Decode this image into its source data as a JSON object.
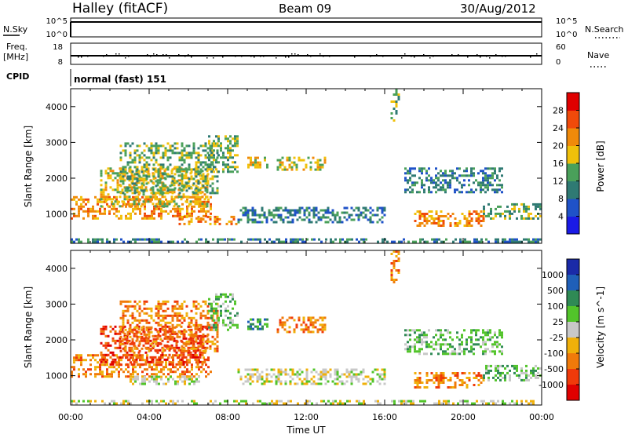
{
  "header": {
    "station": "Halley (fitACF)",
    "beam": "Beam 09",
    "date": "30/Aug/2012"
  },
  "meta_panels": {
    "nsky": {
      "left_label": "N.Sky",
      "right_label": "N.Search",
      "left_ticks": [
        "10^5",
        "10^0"
      ],
      "right_ticks": [
        "10^5",
        "10^0"
      ]
    },
    "freq": {
      "left_label_1": "Freq.",
      "left_label_2": "[MHz]",
      "right_label": "Nave",
      "left_ticks": [
        "18",
        "8"
      ],
      "right_ticks": [
        "60",
        "0"
      ]
    },
    "cpid": {
      "label": "CPID",
      "value": "normal (fast) 151"
    }
  },
  "colors": {
    "power": [
      "#1a1ae6",
      "#1f52c8",
      "#2f7a73",
      "#4aa05a",
      "#f0c00a",
      "#f08a0a",
      "#f04a0a",
      "#e00000"
    ],
    "velocity": [
      "#1a2aa8",
      "#1f5fb8",
      "#2f8a55",
      "#52c42a",
      "#c8c8c8",
      "#f0b00a",
      "#f07a0a",
      "#f03a0a",
      "#e00000"
    ],
    "black": "#000000"
  },
  "chart_data": [
    {
      "type": "heatmap",
      "title": "Power",
      "xlabel": "Time UT",
      "ylabel": "Slant Range [km]",
      "x_ticks": [
        "00:00",
        "04:00",
        "08:00",
        "12:00",
        "16:00",
        "20:00",
        "00:00"
      ],
      "xlim_hours": [
        0,
        24
      ],
      "y_ticks": [
        1000,
        2000,
        3000,
        4000
      ],
      "ylim": [
        180,
        4500
      ],
      "colorbar": {
        "label": "Power [dB]",
        "ticks": [
          4,
          8,
          12,
          16,
          20,
          24,
          28
        ],
        "range": [
          0,
          32
        ]
      },
      "echo_regions": [
        {
          "t": [
            0.0,
            7.2
          ],
          "r": [
            900,
            1500
          ],
          "level": 5
        },
        {
          "t": [
            1.5,
            7.0
          ],
          "r": [
            1200,
            2300
          ],
          "level": 4
        },
        {
          "t": [
            2.5,
            7.5
          ],
          "r": [
            1600,
            3000
          ],
          "level": 3
        },
        {
          "t": [
            5.5,
            8.5
          ],
          "r": [
            700,
            950
          ],
          "level": 5
        },
        {
          "t": [
            7.0,
            8.5
          ],
          "r": [
            2200,
            3200
          ],
          "level": 3
        },
        {
          "t": [
            9.0,
            10.0
          ],
          "r": [
            2300,
            2600
          ],
          "level": 4
        },
        {
          "t": [
            10.5,
            13.0
          ],
          "r": [
            2250,
            2600
          ],
          "level": 4
        },
        {
          "t": [
            8.5,
            16.0
          ],
          "r": [
            800,
            1200
          ],
          "level": 2
        },
        {
          "t": [
            16.3,
            16.7
          ],
          "r": [
            3600,
            4500
          ],
          "level": 3
        },
        {
          "t": [
            17.0,
            22.0
          ],
          "r": [
            1600,
            2300
          ],
          "level": 2
        },
        {
          "t": [
            17.5,
            21.0
          ],
          "r": [
            650,
            1100
          ],
          "level": 5
        },
        {
          "t": [
            21.0,
            24.0
          ],
          "r": [
            850,
            1300
          ],
          "level": 3
        },
        {
          "t": [
            0.0,
            24.0
          ],
          "r": [
            200,
            320
          ],
          "level": 2
        }
      ]
    },
    {
      "type": "heatmap",
      "title": "Velocity",
      "xlabel": "Time UT",
      "ylabel": "Slant Range [km]",
      "x_ticks": [
        "00:00",
        "04:00",
        "08:00",
        "12:00",
        "16:00",
        "20:00",
        "00:00"
      ],
      "xlim_hours": [
        0,
        24
      ],
      "y_ticks": [
        1000,
        2000,
        3000,
        4000
      ],
      "ylim": [
        180,
        4500
      ],
      "colorbar": {
        "label": "Velocity [m s^-1]",
        "ticks": [
          "1000",
          "500",
          "100",
          "25",
          "-25",
          "-100",
          "-500",
          "-1000"
        ]
      },
      "echo_regions": [
        {
          "t": [
            0.0,
            7.2
          ],
          "r": [
            1000,
            1600
          ],
          "level": 6
        },
        {
          "t": [
            1.5,
            7.0
          ],
          "r": [
            1300,
            2400
          ],
          "level": 7
        },
        {
          "t": [
            2.5,
            7.5
          ],
          "r": [
            1700,
            3100
          ],
          "level": 6
        },
        {
          "t": [
            3.0,
            6.5
          ],
          "r": [
            800,
            1000
          ],
          "level": 4
        },
        {
          "t": [
            7.0,
            8.5
          ],
          "r": [
            2300,
            3300
          ],
          "level": 3
        },
        {
          "t": [
            9.0,
            10.0
          ],
          "r": [
            2300,
            2600
          ],
          "level": 2
        },
        {
          "t": [
            10.5,
            13.0
          ],
          "r": [
            2250,
            2650
          ],
          "level": 6
        },
        {
          "t": [
            8.5,
            16.0
          ],
          "r": [
            800,
            1200
          ],
          "level": 4
        },
        {
          "t": [
            16.3,
            16.7
          ],
          "r": [
            3600,
            4500
          ],
          "level": 6
        },
        {
          "t": [
            17.0,
            22.0
          ],
          "r": [
            1600,
            2300
          ],
          "level": 3
        },
        {
          "t": [
            17.5,
            21.0
          ],
          "r": [
            700,
            1100
          ],
          "level": 6
        },
        {
          "t": [
            21.0,
            24.0
          ],
          "r": [
            850,
            1300
          ],
          "level": 3
        },
        {
          "t": [
            0.0,
            24.0
          ],
          "r": [
            200,
            320
          ],
          "level": 4
        }
      ]
    }
  ]
}
